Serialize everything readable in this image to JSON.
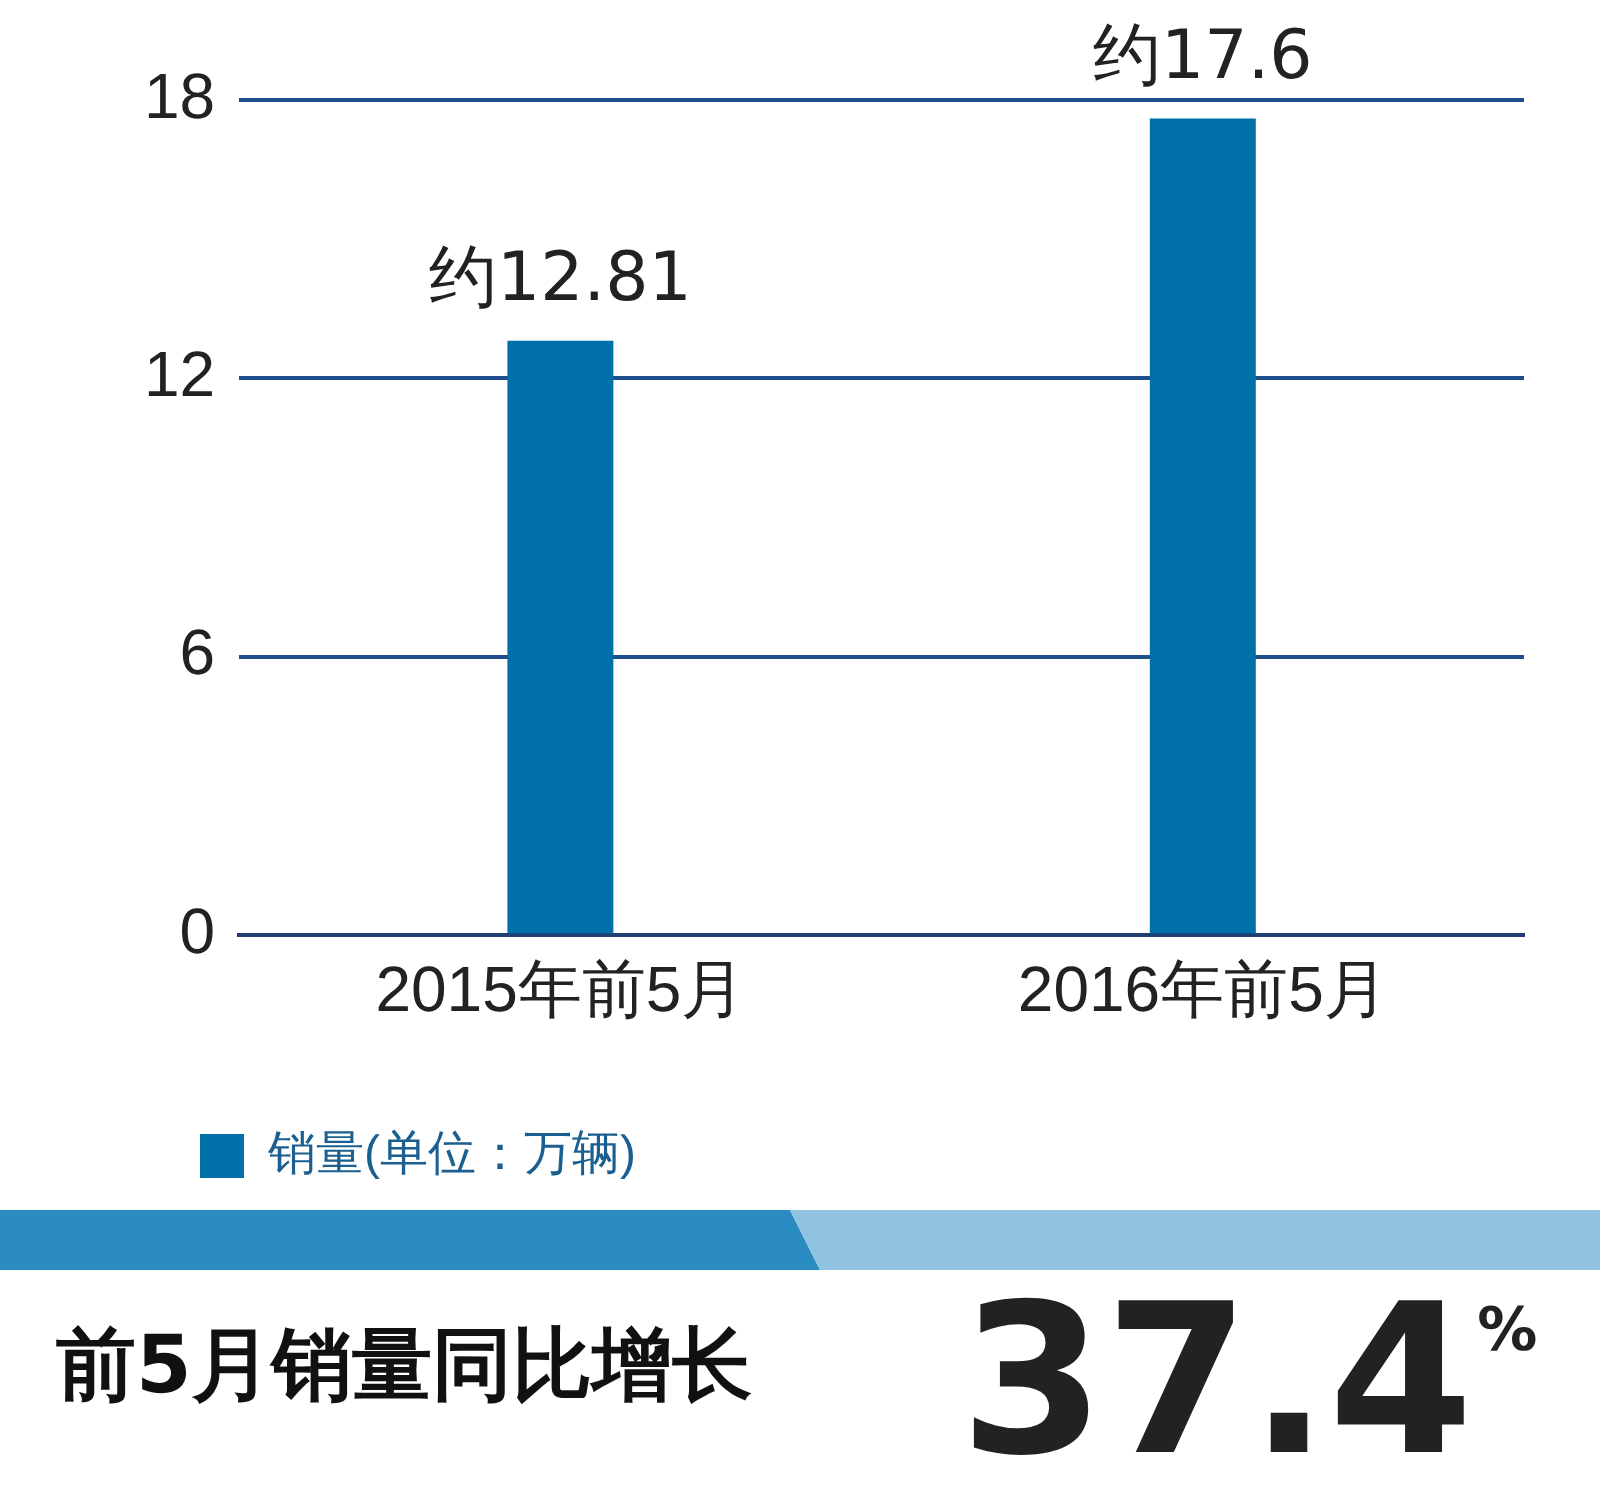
{
  "chart_data": {
    "type": "bar",
    "categories": [
      "2015年前5月",
      "2016年前5月"
    ],
    "series": [
      {
        "name": "销量(单位：万辆)",
        "color": "#0070a8",
        "values": [
          12.81,
          17.6
        ],
        "value_labels": [
          "约12.81",
          "约17.6"
        ]
      }
    ],
    "ylim": [
      0,
      18
    ],
    "yticks": [
      0,
      6,
      12,
      18
    ],
    "grid": "y",
    "legend": "bottom left",
    "annotations": [
      "前5月销量同比增长",
      "37.4$^{%}$"
    ]
  }
}
